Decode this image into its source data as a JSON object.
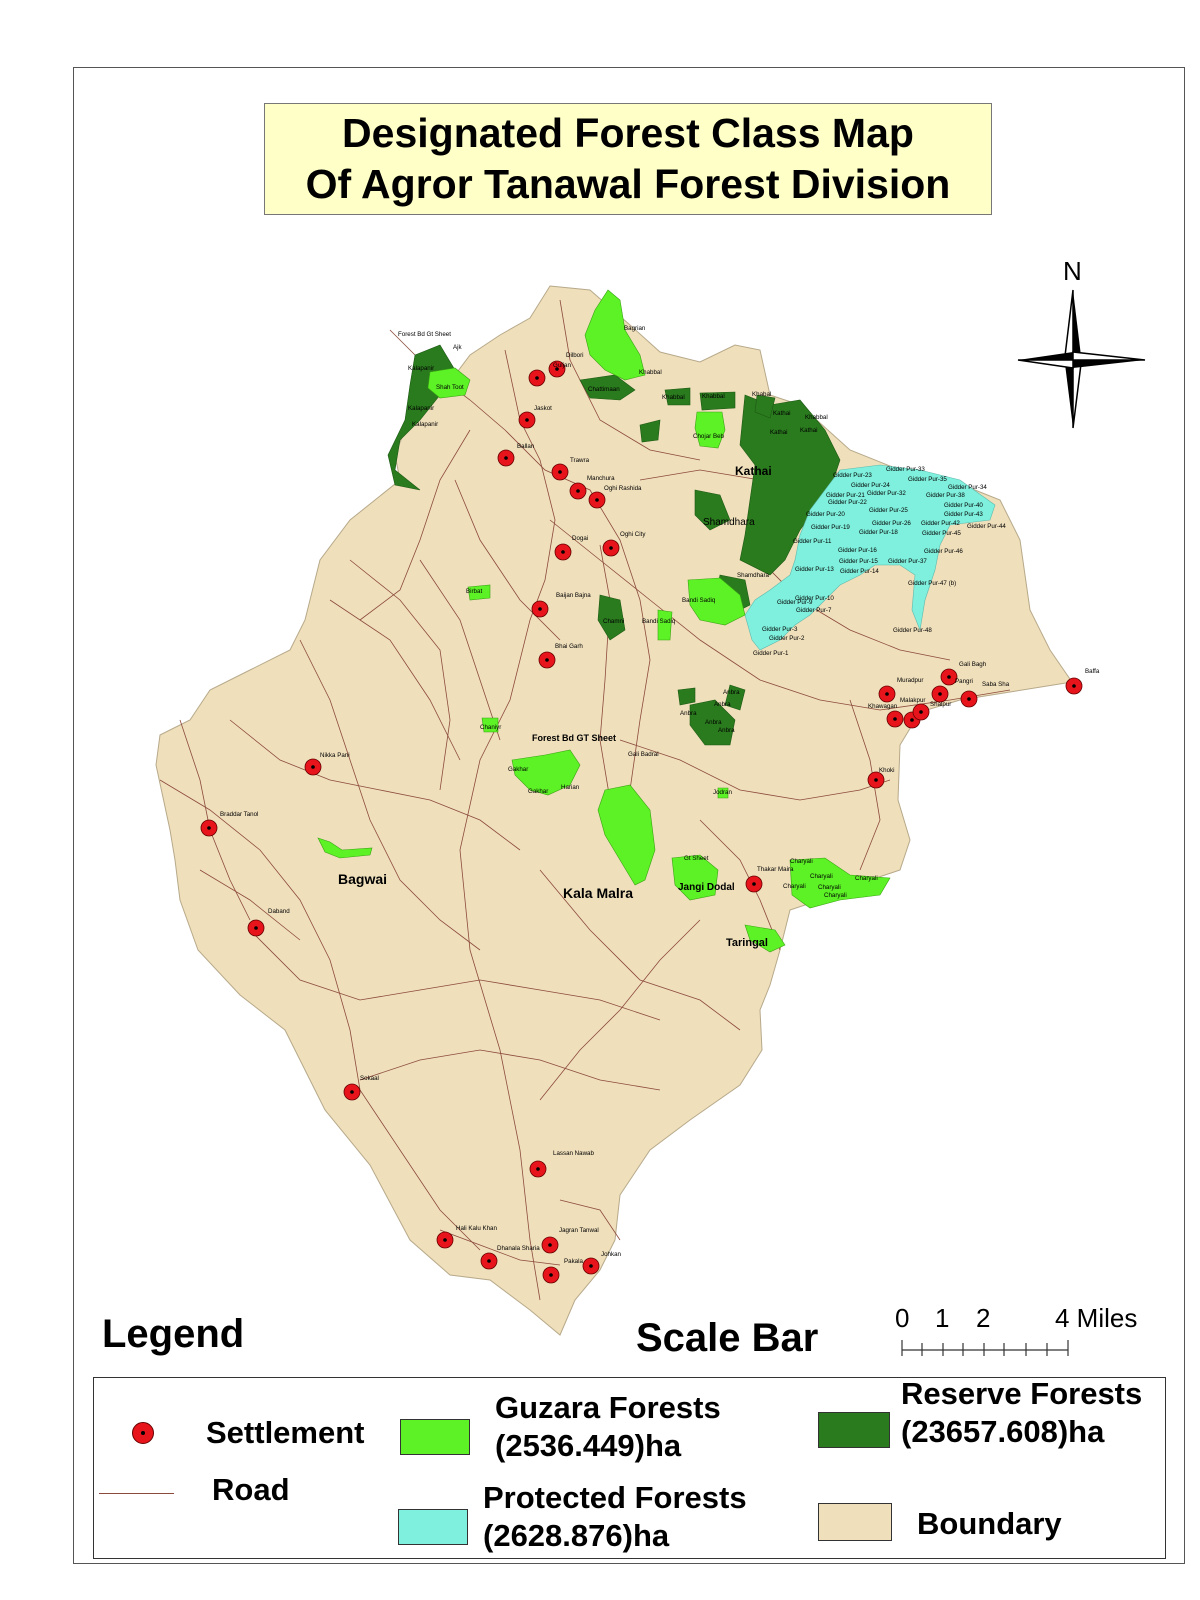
{
  "title": {
    "line1": "Designated Forest Class Map",
    "line2": "Of Agror Tanawal Forest Division"
  },
  "north_arrow": {
    "label": "N"
  },
  "colors": {
    "boundary": "#efdfbb",
    "guzara": "#5cf226",
    "protected": "#7ff0dd",
    "reserve": "#2a7a1e",
    "road": "#8c4a3c",
    "settlement": "#e8141b"
  },
  "scale_bar": {
    "heading": "Scale Bar",
    "ticks": [
      "0",
      "1",
      "2",
      "4 Miles"
    ]
  },
  "legend": {
    "heading": "Legend",
    "settlement": "Settlement",
    "road": "Road",
    "guzara_line1": "Guzara Forests",
    "guzara_line2": "(2536.449)ha",
    "protected_line1": "Protected Forests",
    "protected_line2": "(2628.876)ha",
    "reserve_line1": "Reserve Forests",
    "reserve_line2": "(23657.608)ha",
    "boundary": "Boundary"
  },
  "place_labels": {
    "kathai": "Kathai",
    "shamdhara": "Shamdhara",
    "bagwai": "Bagwai",
    "kala_malra": "Kala Malra",
    "taringal": "Taringal",
    "jangi_dodal": "Jangi Dodal",
    "forest_bd_gt_sheet": "Forest Bd GT Sheet"
  },
  "small_labels": [
    "Forest Bd Gt Sheet",
    "Ajk",
    "Kalapanir",
    "Shah Toot",
    "Kalapanir",
    "Kalapanir",
    "Dilbori",
    "Guljan",
    "Jaskot",
    "Ballan",
    "Trawra",
    "Manchura",
    "Oghi Rashida",
    "Bagrian",
    "Chattimaan",
    "Khabbal",
    "Khabbal",
    "Khabbal",
    "Khabal",
    "Khabbal",
    "Chojar Beb",
    "Kathai",
    "Kathai",
    "Kathai",
    "Dogai",
    "Oghi City",
    "Baijan Bajna",
    "Birbat",
    "Bandi Sadiq",
    "Bandi Sadiq",
    "Chamni",
    "Bhai Garh",
    "Shamdhara",
    "Gidder Pur-23",
    "Gidder Pur-33",
    "Gidder Pur-24",
    "Gidder Pur-35",
    "Gidder Pur-34",
    "Gidder Pur-21",
    "Gidder Pur-32",
    "Gidder Pur-38",
    "Gidder Pur-22",
    "Gidder Pur-40",
    "Gidder Pur-20",
    "Gidder Pur-25",
    "Gidder Pur-43",
    "Gidder Pur-19",
    "Gidder Pur-26",
    "Gidder Pur-42",
    "Gidder Pur-44",
    "Gidder Pur-18",
    "Gidder Pur-45",
    "Gidder Pur-11",
    "Gidder Pur-16",
    "Gidder Pur-46",
    "Gidder Pur-15",
    "Gidder Pur-37",
    "Gidder Pur-14",
    "Gidder Pur-13",
    "Gidder Pur-10",
    "Gidder Pur-9",
    "Gidder Pur-7",
    "Gidder Pur-47 (b)",
    "Gidder Pur-3",
    "Gidder Pur-2",
    "Gidder Pur-1",
    "Gidder Pur-48",
    "Gali Bagh",
    "Muradpur",
    "Pangri",
    "Saba Sha",
    "Baffa",
    "Khawagan",
    "Malakpur",
    "Shalpur",
    "Anbra",
    "Anbra",
    "Anbra",
    "Anbra",
    "Anbra",
    "Chaniyr",
    "Gali Badral",
    "Nikka Pani",
    "Gakhar",
    "Gakhar",
    "Harian",
    "Jodran",
    "Khoki",
    "Braddar Tanol",
    "Gt Sheet",
    "Charyali",
    "Charyali",
    "Charyali",
    "Charyali",
    "Charyali",
    "Charyali",
    "Thakar Maira",
    "Daband",
    "Sokaal",
    "Lassan Nawab",
    "Hali Kalu Khan",
    "Jagran Tanwal",
    "Dhanala Sharia",
    "Johkan",
    "Pakala"
  ]
}
